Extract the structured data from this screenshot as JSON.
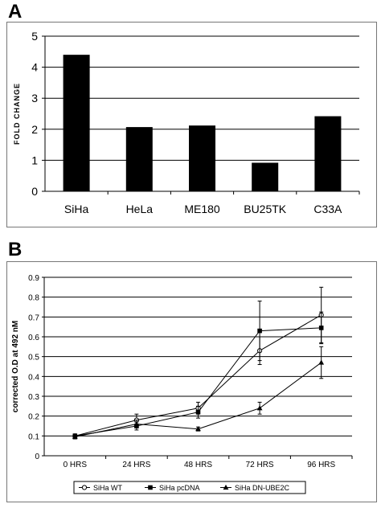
{
  "panels": {
    "a_letter": "A",
    "b_letter": "B"
  },
  "colors": {
    "bar": "#000000",
    "gridline": "#000000",
    "series_line": "#000000",
    "frame_border": "#777777"
  },
  "chart_data": [
    {
      "type": "bar",
      "panel": "A",
      "categories": [
        "SiHa",
        "HeLa",
        "ME180",
        "BU25TK",
        "C33A"
      ],
      "values": [
        4.4,
        2.07,
        2.12,
        0.92,
        2.42
      ],
      "title": "",
      "xlabel": "",
      "ylabel": "FOLD CHANGE",
      "ylim": [
        0,
        5
      ],
      "yticks": [
        "0",
        "1",
        "2",
        "3",
        "4",
        "5"
      ],
      "grid": true
    },
    {
      "type": "line",
      "panel": "B",
      "categories": [
        "0 HRS",
        "24 HRS",
        "48 HRS",
        "72 HRS",
        "96 HRS"
      ],
      "title": "",
      "xlabel": "",
      "ylabel": "corrected O.D at 492 nM",
      "ylim": [
        0,
        0.9
      ],
      "yticks": [
        "0",
        "0.1",
        "0.2",
        "0.3",
        "0.4",
        "0.5",
        "0.6",
        "0.7",
        "0.8",
        "0.9"
      ],
      "grid": true,
      "legend_position": "bottom",
      "series": [
        {
          "name": "SiHa WT",
          "marker": "circle-open",
          "values": [
            0.1,
            0.18,
            0.24,
            0.53,
            0.71
          ],
          "errors": [
            0.01,
            0.03,
            0.03,
            0.07,
            0.14
          ]
        },
        {
          "name": "SiHa pcDNA",
          "marker": "square",
          "values": [
            0.1,
            0.15,
            0.22,
            0.63,
            0.645
          ],
          "errors": [
            0.01,
            0.02,
            0.03,
            0.15,
            0.08
          ]
        },
        {
          "name": "SiHa DN-UBE2C",
          "marker": "triangle",
          "values": [
            0.095,
            0.16,
            0.135,
            0.24,
            0.47
          ],
          "errors": [
            0.01,
            0.02,
            0.01,
            0.03,
            0.08
          ]
        }
      ]
    }
  ]
}
